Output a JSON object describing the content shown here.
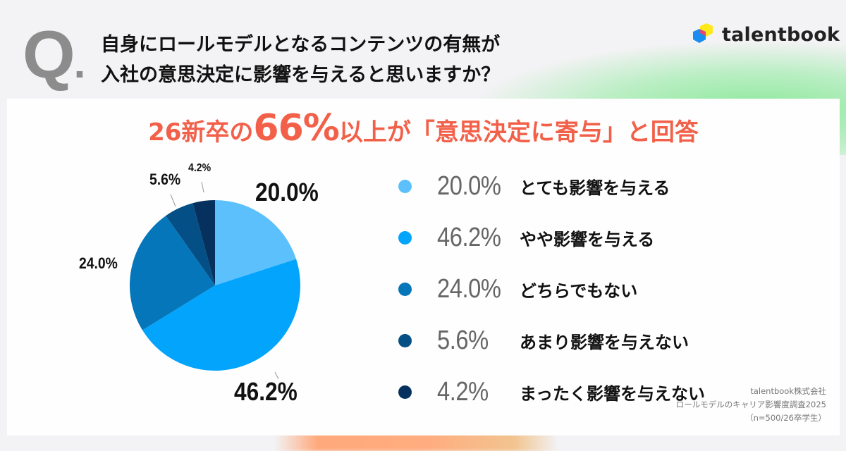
{
  "header": {
    "q_mark": "Q",
    "q_dot": ".",
    "question_lines": [
      "自身にロールモデルとなるコンテンツの有無が",
      "入社の意思決定に影響を与えると思いますか？"
    ],
    "logo_text": "talentbook"
  },
  "headline": {
    "prefix": "26新卒の",
    "emphasis": "66%",
    "suffix": "以上が「意思決定に寄与」と回答"
  },
  "colors": {
    "accent_red": "#f26049",
    "slice_1": "#5bc0fc",
    "slice_2": "#03a4fb",
    "slice_3": "#0576b9",
    "slice_4": "#044f85",
    "slice_5": "#06305d",
    "q_gray": "#8c8c8c"
  },
  "chart_data": {
    "type": "pie",
    "title": "自身にロールモデルとなるコンテンツの有無が入社の意思決定に影響を与えると思いますか？",
    "subtitle": "26新卒の66%以上が「意思決定に寄与」と回答",
    "start_angle_deg": 0,
    "direction": "clockwise",
    "legend_position": "right",
    "categories": [
      "とても影響を与える",
      "やや影響を与える",
      "どちらでもない",
      "あまり影響を与えない",
      "まったく影響を与えない"
    ],
    "values": [
      20.0,
      46.2,
      24.0,
      5.6,
      4.2
    ],
    "labels": [
      "20.0%",
      "46.2%",
      "24.0%",
      "5.6%",
      "4.2%"
    ],
    "colors": [
      "#5bc0fc",
      "#03a4fb",
      "#0576b9",
      "#044f85",
      "#06305d"
    ]
  },
  "legend": {
    "items": [
      {
        "pct": "20.0%",
        "label": "とても影響を与える"
      },
      {
        "pct": "46.2%",
        "label": "やや影響を与える"
      },
      {
        "pct": "24.0%",
        "label": "どちらでもない"
      },
      {
        "pct": "5.6%",
        "label": "あまり影響を与えない"
      },
      {
        "pct": "4.2%",
        "label": "まったく影響を与えない"
      }
    ]
  },
  "source": {
    "lines": [
      "talentbook株式会社",
      "ロールモデルのキャリア影響度調査2025",
      "（n=500/26卒学生）"
    ]
  }
}
